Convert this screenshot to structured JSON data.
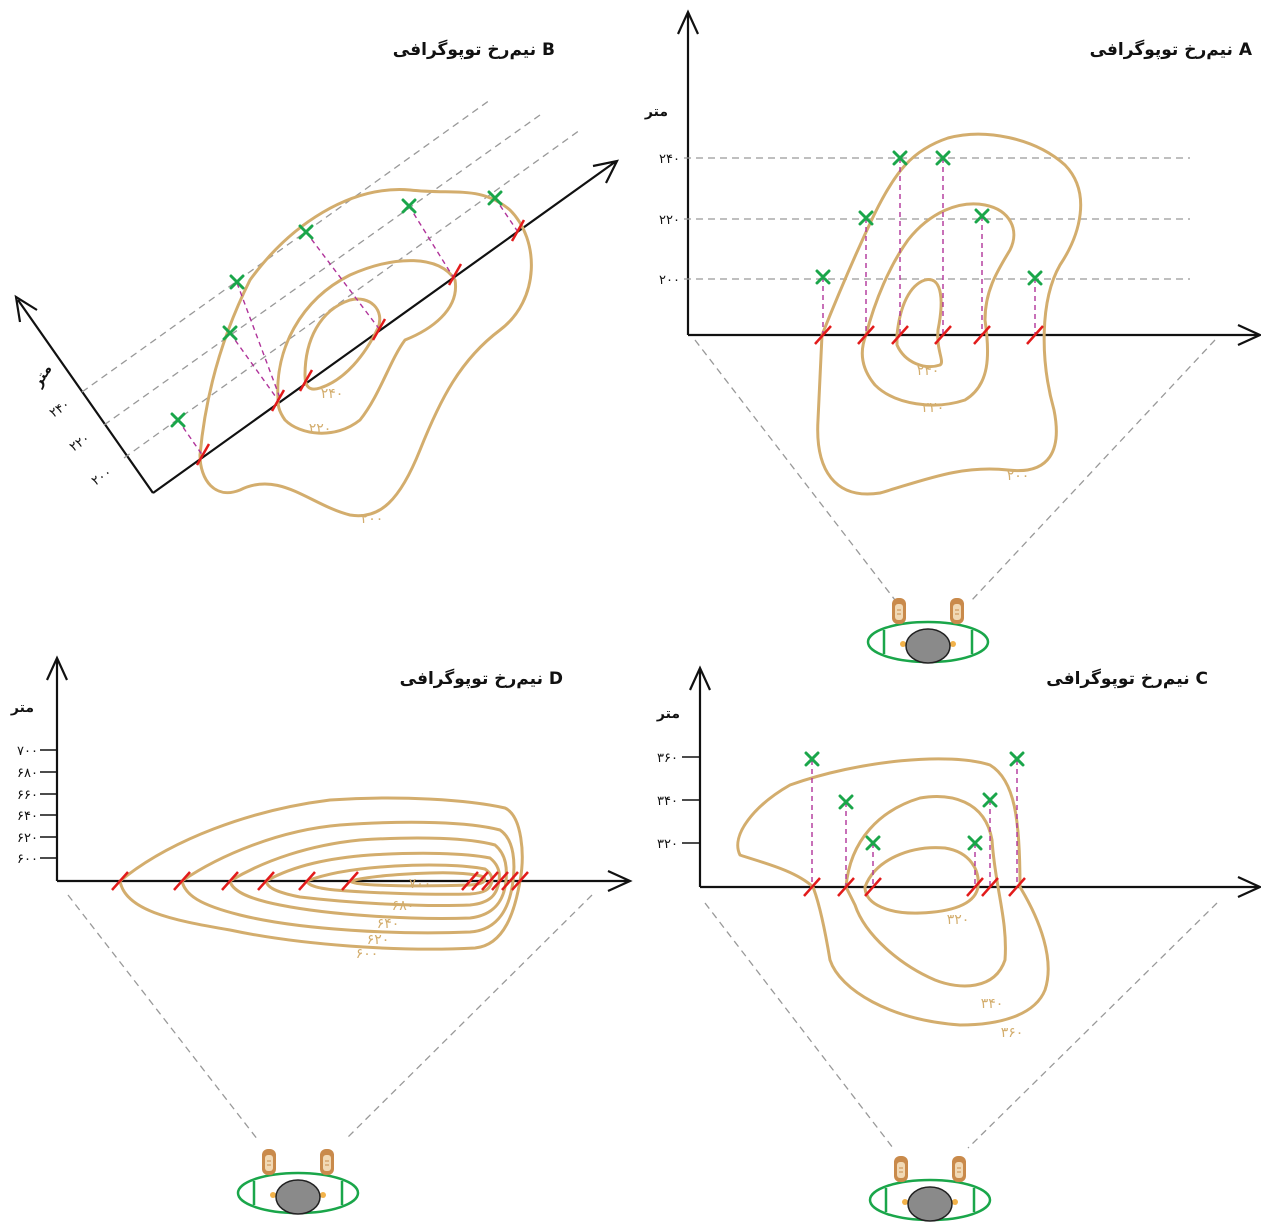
{
  "panels": {
    "A": {
      "title": "نیم‌رخ توپوگرافی A",
      "unit": "متر",
      "ticks": [
        "۲۴۰",
        "۲۲۰",
        "۲۰۰"
      ],
      "contour_labels": [
        "۲۴۰",
        "۲۲۰",
        "۲۰۰"
      ]
    },
    "B": {
      "title": "نیم‌رخ توپوگرافی B",
      "unit": "متر",
      "ticks": [
        "۲۴۰",
        "۲۲۰",
        "۲۰۰"
      ],
      "contour_labels": [
        "۲۴۰",
        "۲۲۰",
        "۲۰۰"
      ]
    },
    "C": {
      "title": "نیم‌رخ توپوگرافی C",
      "unit": "متر",
      "ticks": [
        "۳۶۰",
        "۳۴۰",
        "۳۲۰"
      ],
      "contour_labels": [
        "۳۲۰",
        "۳۴۰",
        "۳۶۰"
      ]
    },
    "D": {
      "title": "نیم‌رخ توپوگرافی D",
      "unit": "متر",
      "ticks": [
        "۷۰۰",
        "۶۸۰",
        "۶۶۰",
        "۶۴۰",
        "۶۲۰",
        "۶۰۰"
      ],
      "contour_labels": [
        "۷۰۰",
        "۶۸۰",
        "۶۴۰",
        "۶۲۰",
        "۶۰۰"
      ]
    }
  },
  "colors": {
    "contour": "#d3ad6d",
    "cut": "#e21b1b",
    "mark": "#1aa64a",
    "drop": "#b0339a",
    "guide": "#999999",
    "observer_ring": "#1aa64a"
  },
  "icons": [
    "observer-icon"
  ]
}
